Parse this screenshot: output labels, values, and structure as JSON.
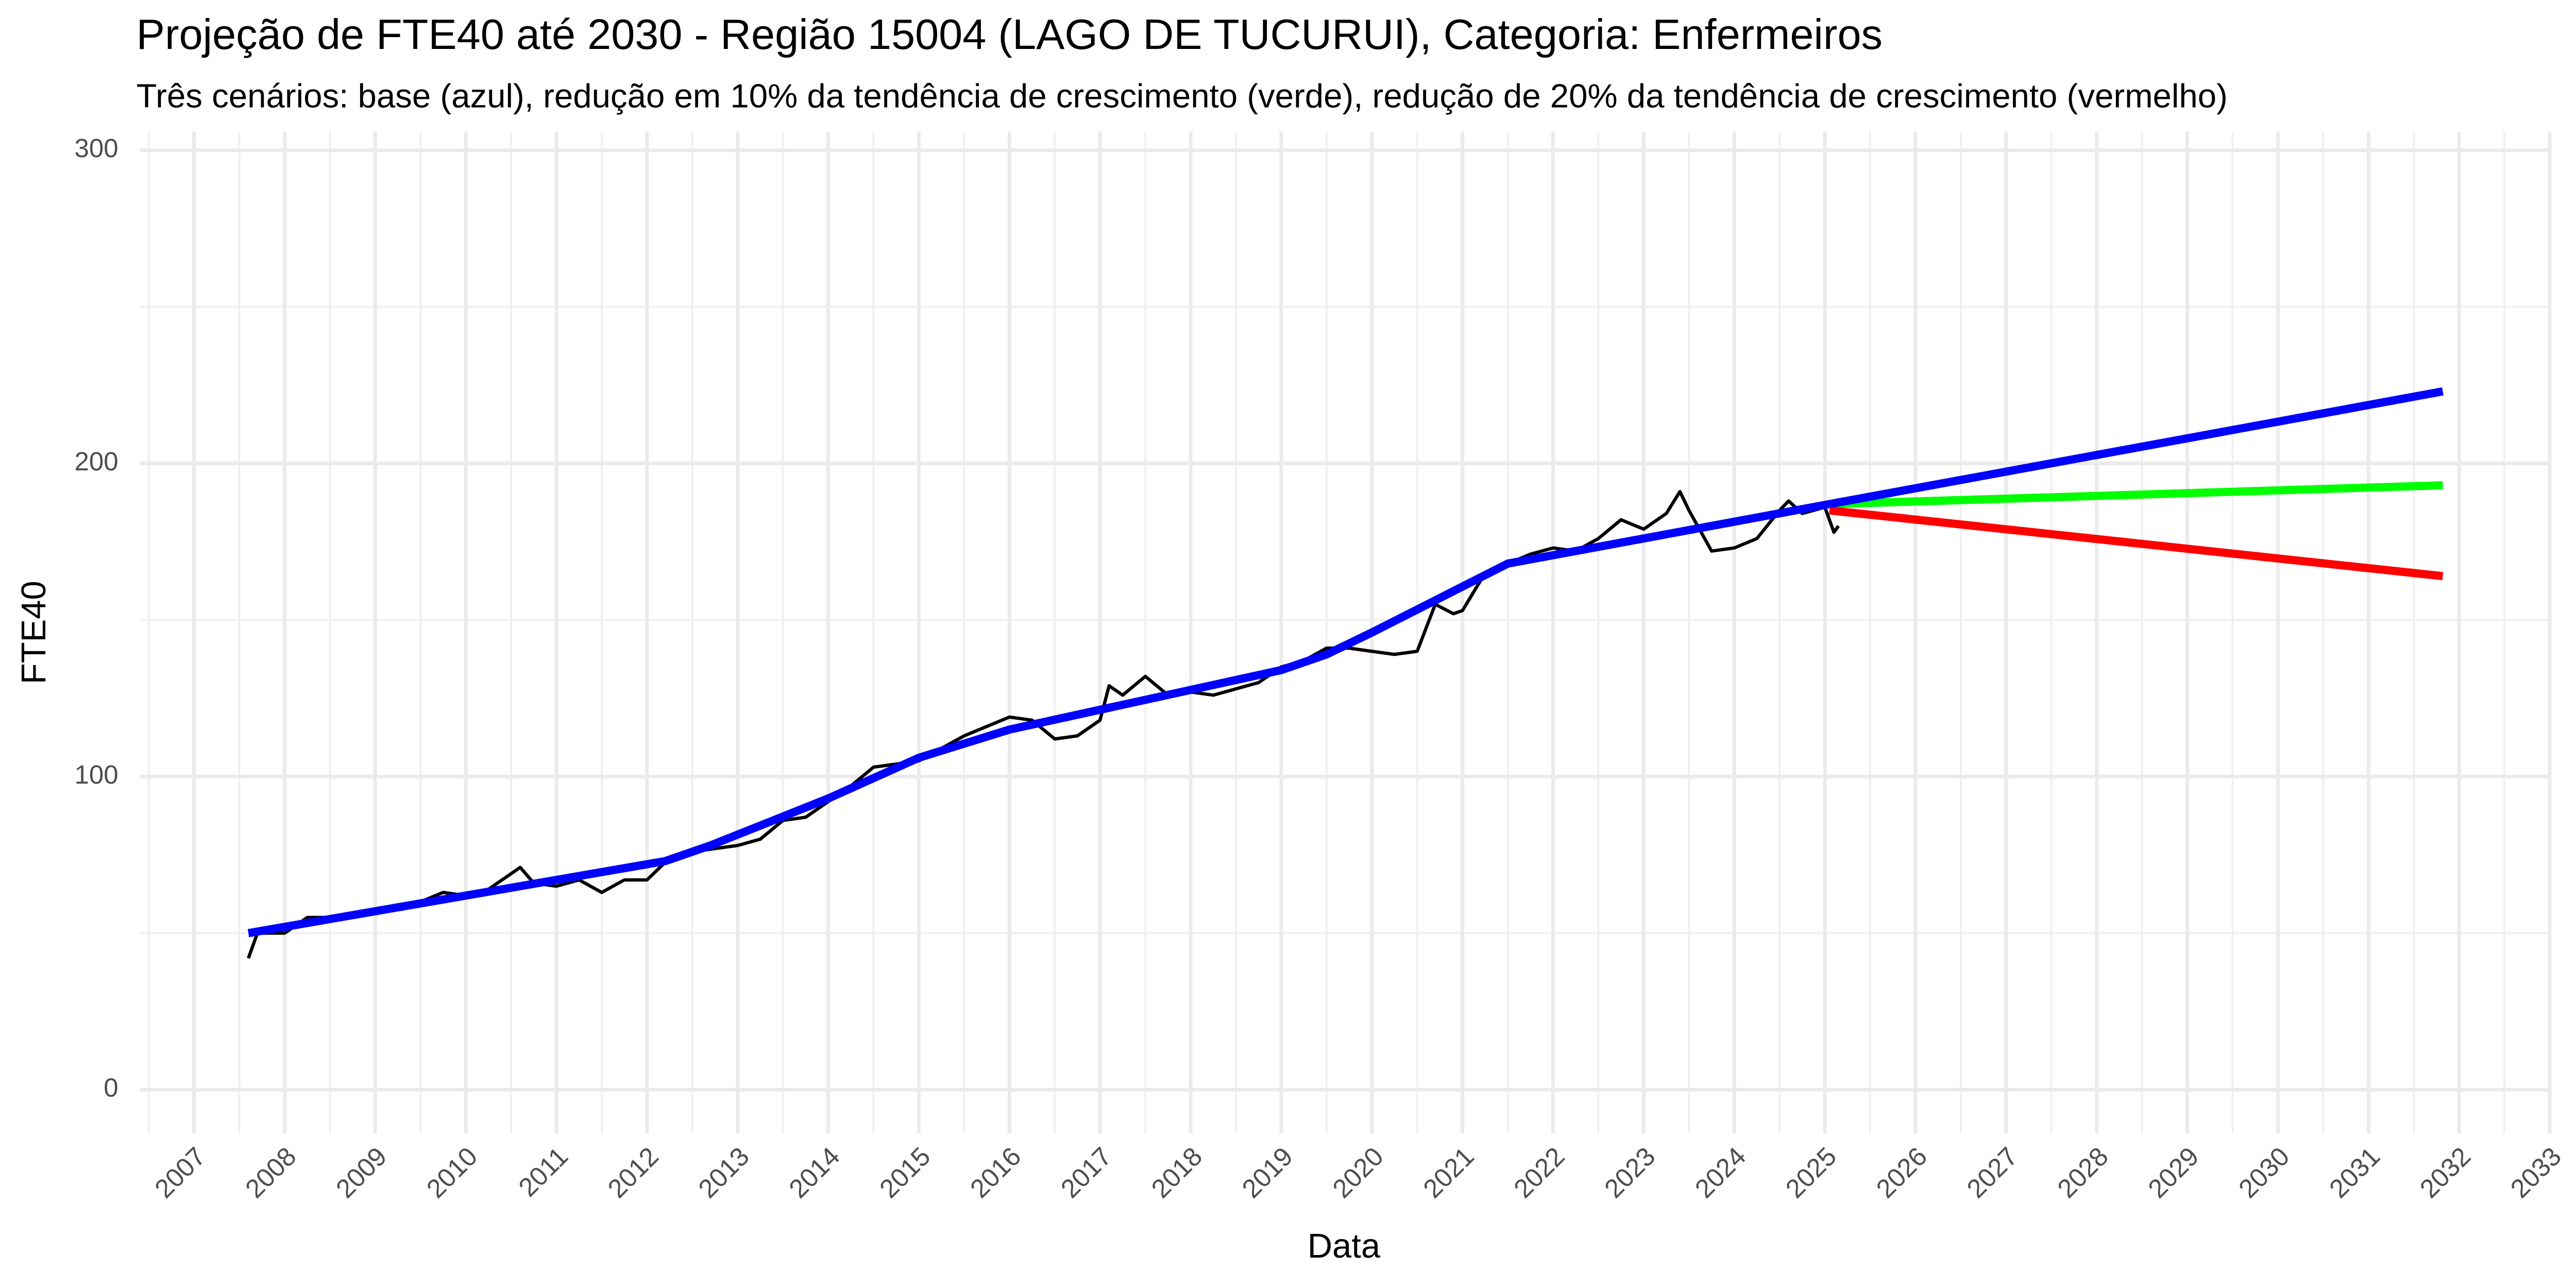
{
  "chart_data": {
    "type": "line",
    "title": "Projeção de FTE40 até 2030 - Região 15004 (LAGO DE TUCURUI), Categoria: Enfermeiros",
    "subtitle": "Três cenários: base (azul), redução em 10% da tendência de crescimento (verde), redução de 20% da tendência de crescimento (vermelho)",
    "x_label": "Data",
    "y_label": "FTE40",
    "xlim": [
      2006.4,
      2033.0
    ],
    "ylim": [
      -14,
      306
    ],
    "xticks": [
      2007,
      2008,
      2009,
      2010,
      2011,
      2012,
      2013,
      2014,
      2015,
      2016,
      2017,
      2018,
      2019,
      2020,
      2021,
      2022,
      2023,
      2024,
      2025,
      2026,
      2027,
      2028,
      2029,
      2030,
      2031,
      2032,
      2033
    ],
    "yticks": [
      0,
      100,
      200,
      300
    ],
    "grid": true,
    "minor_grid": true,
    "series": [
      {
        "color": "#000000",
        "x": [
          2007.6,
          2007.7,
          2008.0,
          2008.25,
          2008.5,
          2008.75,
          2009.0,
          2009.25,
          2009.5,
          2009.75,
          2010.0,
          2010.25,
          2010.5,
          2010.6,
          2010.75,
          2011.0,
          2011.25,
          2011.5,
          2011.75,
          2012.0,
          2012.25,
          2012.5,
          2012.75,
          2013.0,
          2013.25,
          2013.5,
          2013.75,
          2014.0,
          2014.25,
          2014.5,
          2014.75,
          2015.0,
          2015.25,
          2015.5,
          2015.75,
          2016.0,
          2016.25,
          2016.5,
          2016.75,
          2017.0,
          2017.1,
          2017.25,
          2017.5,
          2017.75,
          2018.0,
          2018.25,
          2018.5,
          2018.75,
          2019.0,
          2019.25,
          2019.5,
          2019.75,
          2020.0,
          2020.25,
          2020.5,
          2020.7,
          2020.9,
          2021.0,
          2021.25,
          2021.5,
          2021.75,
          2022.0,
          2022.25,
          2022.5,
          2022.75,
          2023.0,
          2023.25,
          2023.4,
          2023.5,
          2023.75,
          2024.0,
          2024.25,
          2024.5,
          2024.6,
          2024.75,
          2025.0,
          2025.1,
          2025.15
        ],
        "values": [
          42,
          50,
          50,
          55,
          55,
          56,
          57,
          58,
          60,
          63,
          62,
          64,
          69,
          71,
          66,
          65,
          67,
          63,
          67,
          67,
          74,
          76,
          77,
          78,
          80,
          86,
          87,
          92,
          97,
          103,
          104,
          105,
          109,
          113,
          116,
          119,
          118,
          112,
          113,
          118,
          129,
          126,
          132,
          126,
          127,
          126,
          128,
          130,
          135,
          137,
          141,
          141,
          140,
          139,
          140,
          155,
          152,
          153,
          165,
          168,
          171,
          173,
          172,
          176,
          182,
          179,
          184,
          191,
          185,
          172,
          173,
          176,
          185,
          188,
          184,
          186,
          178,
          180
        ]
      },
      {
        "color": "#0000ff",
        "x": [
          2007.6,
          2012.2,
          2012.7,
          2014.0,
          2015.0,
          2016.0,
          2019.0,
          2019.5,
          2020.0,
          2021.5,
          2025.05
        ],
        "values": [
          50,
          73,
          78,
          93,
          106,
          115,
          134,
          139,
          146,
          168,
          187
        ]
      },
      {
        "color": "#00ff00",
        "x": [
          2025.05,
          2031.82
        ],
        "values": [
          187,
          193
        ]
      },
      {
        "color": "#ff0000",
        "x": [
          2025.05,
          2031.82
        ],
        "values": [
          185,
          164
        ]
      },
      {
        "color": "#0000ff",
        "x": [
          2025.05,
          2031.82
        ],
        "values": [
          187,
          223
        ]
      }
    ]
  }
}
